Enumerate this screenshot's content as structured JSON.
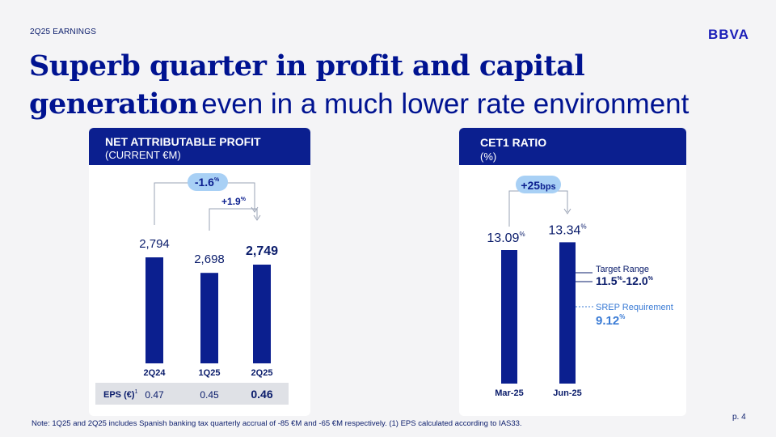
{
  "header": {
    "kicker": "2Q25 EARNINGS",
    "logo": "BBVA",
    "page": "p. 4"
  },
  "title": {
    "bold_1": "Superb quarter in profit and capital",
    "bold_2": "generation",
    "rest": "even in a much lower rate environment"
  },
  "colors": {
    "navy": "#0b1f8f",
    "bar": "#0b1f8f",
    "badge": "#a8d0f5",
    "srep": "#3a7bd5"
  },
  "left_card": {
    "title": "NET ATTRIBUTABLE PROFIT",
    "subtitle": "(CURRENT €M)"
  },
  "right_card": {
    "title": "CET1 RATIO",
    "subtitle": "(%)"
  },
  "chart_data": [
    {
      "type": "bar",
      "title": "NET ATTRIBUTABLE PROFIT (CURRENT €M)",
      "categories": [
        "2Q24",
        "1Q25",
        "2Q25"
      ],
      "values": [
        2794,
        2698,
        2749
      ],
      "value_labels": [
        "2,794",
        "2,698",
        "2,749"
      ],
      "annotations": [
        {
          "from": "2Q24",
          "to": "2Q25",
          "value": "-1.6",
          "unit": "%"
        },
        {
          "from": "1Q25",
          "to": "2Q25",
          "value": "+1.9",
          "unit": "%"
        }
      ],
      "table": {
        "label": "EPS (€)",
        "superscript": "1",
        "values": [
          "0.47",
          "0.45",
          "0.46"
        ]
      }
    },
    {
      "type": "bar",
      "title": "CET1 RATIO (%)",
      "categories": [
        "Mar-25",
        "Jun-25"
      ],
      "values": [
        13.09,
        13.34
      ],
      "value_labels": [
        "13.09",
        "13.34"
      ],
      "unit": "%",
      "annotation": {
        "value": "+25",
        "unit": "bps"
      },
      "reference_lines": [
        {
          "label": "Target Range",
          "value_text": "11.5",
          "unit": "%",
          "value_text2": "-12.0",
          "unit2": "%",
          "range": [
            11.5,
            12.0
          ]
        },
        {
          "label": "SREP Requirement",
          "value_text": "9.12",
          "unit": "%",
          "value": 9.12
        }
      ]
    }
  ],
  "footnote": "Note: 1Q25 and 2Q25 includes Spanish banking tax quarterly accrual of -85 €M and -65 €M respectively. (1) EPS calculated according to IAS33."
}
